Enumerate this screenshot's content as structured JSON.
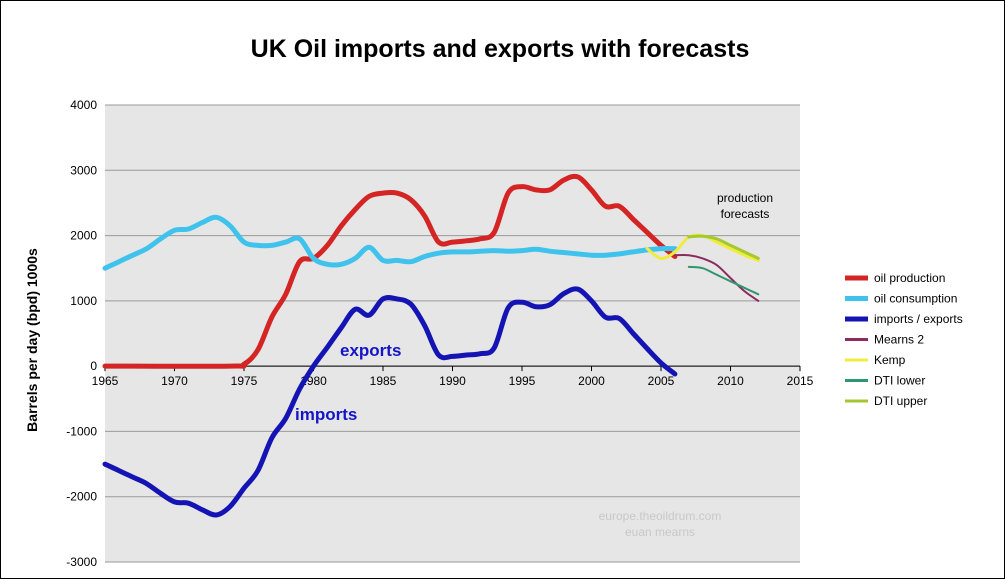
{
  "chart_data": {
    "type": "line",
    "title": "UK Oil imports and exports with forecasts",
    "ylabel": "Barrels per day (bpd) 1000s",
    "xlabel": "",
    "xlim": [
      1965,
      2015
    ],
    "ylim": [
      -3000,
      4000
    ],
    "xticks": [
      "1965",
      "1970",
      "1975",
      "1980",
      "1985",
      "1990",
      "1995",
      "2000",
      "2005",
      "2010",
      "2015"
    ],
    "yticks": [
      "4000",
      "3000",
      "2000",
      "1000",
      "0",
      "-1000",
      "-2000",
      "-3000"
    ],
    "grid": true,
    "legend_position": "right",
    "background": "#e6e6e6",
    "series": [
      {
        "name": "oil production",
        "color": "#d42424",
        "width": 5,
        "points": [
          [
            1965,
            0
          ],
          [
            1974,
            0
          ],
          [
            1975,
            30
          ],
          [
            1976,
            250
          ],
          [
            1977,
            750
          ],
          [
            1978,
            1100
          ],
          [
            1979,
            1600
          ],
          [
            1980,
            1650
          ],
          [
            1981,
            1850
          ],
          [
            1982,
            2150
          ],
          [
            1983,
            2400
          ],
          [
            1984,
            2600
          ],
          [
            1985,
            2650
          ],
          [
            1986,
            2650
          ],
          [
            1987,
            2550
          ],
          [
            1988,
            2300
          ],
          [
            1989,
            1900
          ],
          [
            1990,
            1900
          ],
          [
            1991,
            1920
          ],
          [
            1992,
            1950
          ],
          [
            1993,
            2050
          ],
          [
            1994,
            2650
          ],
          [
            1995,
            2750
          ],
          [
            1996,
            2700
          ],
          [
            1997,
            2700
          ],
          [
            1998,
            2850
          ],
          [
            1999,
            2900
          ],
          [
            2000,
            2700
          ],
          [
            2001,
            2450
          ],
          [
            2002,
            2450
          ],
          [
            2003,
            2250
          ],
          [
            2004,
            2050
          ],
          [
            2005,
            1850
          ],
          [
            2006,
            1680
          ]
        ]
      },
      {
        "name": "oil consumption",
        "color": "#3fc3ec",
        "width": 5,
        "points": [
          [
            1965,
            1500
          ],
          [
            1966,
            1600
          ],
          [
            1967,
            1700
          ],
          [
            1968,
            1800
          ],
          [
            1969,
            1950
          ],
          [
            1970,
            2080
          ],
          [
            1971,
            2100
          ],
          [
            1972,
            2200
          ],
          [
            1973,
            2280
          ],
          [
            1974,
            2150
          ],
          [
            1975,
            1900
          ],
          [
            1976,
            1850
          ],
          [
            1977,
            1850
          ],
          [
            1978,
            1900
          ],
          [
            1979,
            1950
          ],
          [
            1980,
            1650
          ],
          [
            1981,
            1560
          ],
          [
            1982,
            1560
          ],
          [
            1983,
            1650
          ],
          [
            1984,
            1820
          ],
          [
            1985,
            1620
          ],
          [
            1986,
            1620
          ],
          [
            1987,
            1600
          ],
          [
            1988,
            1680
          ],
          [
            1989,
            1730
          ],
          [
            1990,
            1750
          ],
          [
            1991,
            1750
          ],
          [
            1992,
            1760
          ],
          [
            1993,
            1770
          ],
          [
            1994,
            1760
          ],
          [
            1995,
            1770
          ],
          [
            1996,
            1790
          ],
          [
            1997,
            1760
          ],
          [
            1998,
            1740
          ],
          [
            1999,
            1720
          ],
          [
            2000,
            1700
          ],
          [
            2001,
            1700
          ],
          [
            2002,
            1720
          ],
          [
            2003,
            1750
          ],
          [
            2004,
            1780
          ],
          [
            2005,
            1800
          ],
          [
            2006,
            1800
          ]
        ]
      },
      {
        "name": "imports / exports",
        "color": "#1414b4",
        "width": 5,
        "points": [
          [
            1965,
            -1500
          ],
          [
            1966,
            -1600
          ],
          [
            1967,
            -1700
          ],
          [
            1968,
            -1800
          ],
          [
            1969,
            -1950
          ],
          [
            1970,
            -2080
          ],
          [
            1971,
            -2100
          ],
          [
            1972,
            -2200
          ],
          [
            1973,
            -2280
          ],
          [
            1974,
            -2150
          ],
          [
            1975,
            -1870
          ],
          [
            1976,
            -1600
          ],
          [
            1977,
            -1100
          ],
          [
            1978,
            -800
          ],
          [
            1979,
            -350
          ],
          [
            1980,
            0
          ],
          [
            1981,
            290
          ],
          [
            1982,
            590
          ],
          [
            1983,
            870
          ],
          [
            1984,
            780
          ],
          [
            1985,
            1030
          ],
          [
            1986,
            1030
          ],
          [
            1987,
            950
          ],
          [
            1988,
            620
          ],
          [
            1989,
            170
          ],
          [
            1990,
            150
          ],
          [
            1991,
            170
          ],
          [
            1992,
            190
          ],
          [
            1993,
            280
          ],
          [
            1994,
            890
          ],
          [
            1995,
            980
          ],
          [
            1996,
            910
          ],
          [
            1997,
            940
          ],
          [
            1998,
            1110
          ],
          [
            1999,
            1180
          ],
          [
            2000,
            1000
          ],
          [
            2001,
            750
          ],
          [
            2002,
            730
          ],
          [
            2003,
            500
          ],
          [
            2004,
            270
          ],
          [
            2005,
            50
          ],
          [
            2006,
            -120
          ]
        ]
      },
      {
        "name": "Mearns 2",
        "color": "#8b2b5e",
        "width": 2,
        "points": [
          [
            2006,
            1700
          ],
          [
            2007,
            1700
          ],
          [
            2008,
            1650
          ],
          [
            2009,
            1550
          ],
          [
            2010,
            1350
          ],
          [
            2011,
            1150
          ],
          [
            2012,
            1000
          ]
        ]
      },
      {
        "name": "Kemp",
        "color": "#f0ec3c",
        "width": 3,
        "points": [
          [
            2004,
            1800
          ],
          [
            2005,
            1650
          ],
          [
            2006,
            1750
          ],
          [
            2007,
            1980
          ],
          [
            2008,
            2000
          ],
          [
            2009,
            1900
          ],
          [
            2010,
            1800
          ],
          [
            2011,
            1700
          ],
          [
            2012,
            1620
          ]
        ]
      },
      {
        "name": "DTI lower",
        "color": "#2f9670",
        "width": 2,
        "points": [
          [
            2007,
            1520
          ],
          [
            2008,
            1500
          ],
          [
            2009,
            1400
          ],
          [
            2010,
            1300
          ],
          [
            2011,
            1200
          ],
          [
            2012,
            1100
          ]
        ]
      },
      {
        "name": "DTI upper",
        "color": "#a4c832",
        "width": 3,
        "points": [
          [
            2007,
            1980
          ],
          [
            2008,
            1990
          ],
          [
            2009,
            1950
          ],
          [
            2010,
            1850
          ],
          [
            2011,
            1750
          ],
          [
            2012,
            1650
          ]
        ]
      }
    ],
    "annotations": {
      "exports": "exports",
      "imports": "imports",
      "forecasts_line1": "production",
      "forecasts_line2": "forecasts",
      "watermark_line1": "europe.theoildrum.com",
      "watermark_line2": "euan mearns"
    }
  }
}
